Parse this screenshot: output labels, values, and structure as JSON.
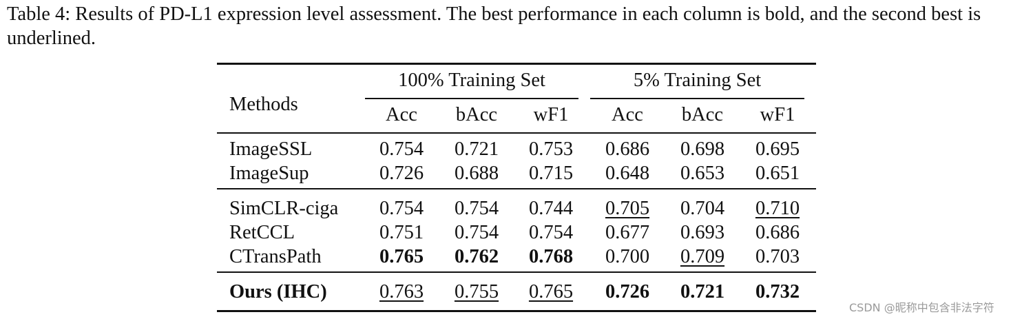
{
  "caption": "Table 4: Results of PD-L1 expression level assessment. The best performance in each column is bold, and the second best is underlined.",
  "table": {
    "method_header": "Methods",
    "column_groups": [
      {
        "title": "100% Training Set",
        "columns": [
          "Acc",
          "bAcc",
          "wF1"
        ]
      },
      {
        "title": "5% Training Set",
        "columns": [
          "Acc",
          "bAcc",
          "wF1"
        ]
      }
    ],
    "row_groups": [
      [
        {
          "method": "ImageSSL",
          "values": [
            "0.754",
            "0.721",
            "0.753",
            "0.686",
            "0.698",
            "0.695"
          ],
          "bold": [],
          "underline": []
        },
        {
          "method": "ImageSup",
          "values": [
            "0.726",
            "0.688",
            "0.715",
            "0.648",
            "0.653",
            "0.651"
          ],
          "bold": [],
          "underline": []
        }
      ],
      [
        {
          "method": "SimCLR-ciga",
          "values": [
            "0.754",
            "0.754",
            "0.744",
            "0.705",
            "0.704",
            "0.710"
          ],
          "bold": [],
          "underline": [
            3,
            5
          ]
        },
        {
          "method": "RetCCL",
          "values": [
            "0.751",
            "0.754",
            "0.754",
            "0.677",
            "0.693",
            "0.686"
          ],
          "bold": [],
          "underline": []
        },
        {
          "method": "CTransPath",
          "values": [
            "0.765",
            "0.762",
            "0.768",
            "0.700",
            "0.709",
            "0.703"
          ],
          "bold": [
            0,
            1,
            2
          ],
          "underline": [
            4
          ]
        }
      ],
      [
        {
          "method": "Ours (IHC)",
          "method_bold": true,
          "values": [
            "0.763",
            "0.755",
            "0.765",
            "0.726",
            "0.721",
            "0.732"
          ],
          "bold": [
            3,
            4,
            5
          ],
          "underline": [
            0,
            1,
            2
          ]
        }
      ]
    ]
  },
  "watermark": "CSDN @昵称中包含非法字符"
}
